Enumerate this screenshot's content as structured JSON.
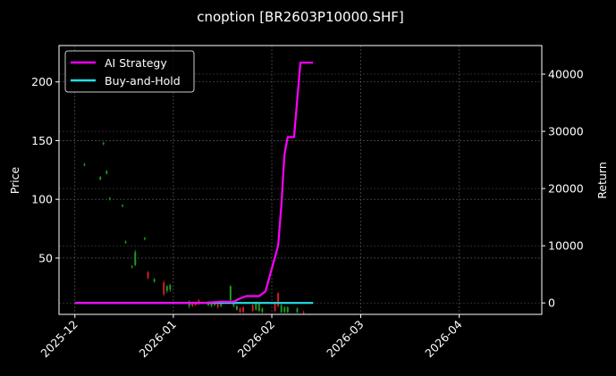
{
  "chart_data": {
    "type": "line",
    "title": "cnoption [BR2603P10000.SHF]",
    "xlabel": "",
    "ylabel": "Price",
    "y2label": "Return",
    "x_range": [
      "2025-11-26",
      "2026-04-27"
    ],
    "ylim": [
      2,
      231
    ],
    "y2lim": [
      -2000,
      45000
    ],
    "grid": true,
    "legend_position": "top-left",
    "x_ticks": [
      "2025-12",
      "2026-01",
      "2026-02",
      "2026-03",
      "2026-04"
    ],
    "y_ticks": [
      50,
      100,
      150,
      200
    ],
    "y2_ticks": [
      0,
      10000,
      20000,
      30000,
      40000
    ],
    "series": [
      {
        "name": "AI Strategy",
        "color": "#ff00ff",
        "axis": "right",
        "x": [
          "2025-12-01",
          "2026-01-10",
          "2026-01-16",
          "2026-01-20",
          "2026-01-22",
          "2026-01-24",
          "2026-01-28",
          "2026-01-30",
          "2026-02-01",
          "2026-02-03",
          "2026-02-04",
          "2026-02-05",
          "2026-02-06",
          "2026-02-07",
          "2026-02-08",
          "2026-02-10",
          "2026-02-11",
          "2026-02-12",
          "2026-02-14"
        ],
        "values": [
          0,
          0,
          200,
          200,
          800,
          1200,
          1200,
          2000,
          6000,
          10000,
          17000,
          26000,
          29000,
          29000,
          29000,
          42000,
          42000,
          42000,
          42000
        ]
      },
      {
        "name": "Buy-and-Hold",
        "color": "#22e0e6",
        "axis": "right",
        "x": [
          "2025-12-01",
          "2026-02-14"
        ],
        "values": [
          0,
          0
        ]
      }
    ],
    "candles": {
      "up_color": "#d42020",
      "down_color": "#1f9e1f",
      "data": [
        {
          "date": "2025-12-04",
          "open": 130,
          "close": 129,
          "high": 131,
          "low": 128
        },
        {
          "date": "2025-12-09",
          "open": 119,
          "close": 117,
          "high": 120,
          "low": 116
        },
        {
          "date": "2025-12-10",
          "open": 148,
          "close": 147,
          "high": 149,
          "low": 146
        },
        {
          "date": "2025-12-11",
          "open": 124,
          "close": 122,
          "high": 125,
          "low": 121
        },
        {
          "date": "2025-12-12",
          "open": 101,
          "close": 100,
          "high": 102,
          "low": 99
        },
        {
          "date": "2025-12-16",
          "open": 95,
          "close": 94,
          "high": 96,
          "low": 93
        },
        {
          "date": "2025-12-17",
          "open": 64,
          "close": 63,
          "high": 65,
          "low": 62
        },
        {
          "date": "2025-12-19",
          "open": 43,
          "close": 42,
          "high": 44,
          "low": 41
        },
        {
          "date": "2025-12-20",
          "open": 55,
          "close": 44,
          "high": 57,
          "low": 43
        },
        {
          "date": "2025-12-23",
          "open": 67,
          "close": 66,
          "high": 68,
          "low": 65
        },
        {
          "date": "2025-12-24",
          "open": 33,
          "close": 38,
          "high": 39,
          "low": 32
        },
        {
          "date": "2025-12-26",
          "open": 32,
          "close": 30,
          "high": 33,
          "low": 29
        },
        {
          "date": "2025-12-29",
          "open": 19,
          "close": 29,
          "high": 31,
          "low": 18
        },
        {
          "date": "2025-12-30",
          "open": 26,
          "close": 22,
          "high": 27,
          "low": 20
        },
        {
          "date": "2025-12-31",
          "open": 27,
          "close": 23,
          "high": 28,
          "low": 21
        },
        {
          "date": "2026-01-06",
          "open": 13,
          "close": 9,
          "high": 14,
          "low": 7
        },
        {
          "date": "2026-01-07",
          "open": 9,
          "close": 12,
          "high": 13,
          "low": 8
        },
        {
          "date": "2026-01-08",
          "open": 10,
          "close": 12,
          "high": 13,
          "low": 9
        },
        {
          "date": "2026-01-09",
          "open": 11,
          "close": 14,
          "high": 15,
          "low": 10
        },
        {
          "date": "2026-01-12",
          "open": 12,
          "close": 10,
          "high": 13,
          "low": 9
        },
        {
          "date": "2026-01-13",
          "open": 11,
          "close": 9,
          "high": 12,
          "low": 8
        },
        {
          "date": "2026-01-14",
          "open": 12,
          "close": 10,
          "high": 13,
          "low": 9
        },
        {
          "date": "2026-01-15",
          "open": 8,
          "close": 11,
          "high": 12,
          "low": 7
        },
        {
          "date": "2026-01-16",
          "open": 11,
          "close": 9,
          "high": 12,
          "low": 8
        },
        {
          "date": "2026-01-19",
          "open": 26,
          "close": 14,
          "high": 27,
          "low": 13
        },
        {
          "date": "2026-01-20",
          "open": 12,
          "close": 9,
          "high": 13,
          "low": 8
        },
        {
          "date": "2026-01-21",
          "open": 9,
          "close": 6,
          "high": 10,
          "low": 5
        },
        {
          "date": "2026-01-22",
          "open": 4,
          "close": 7,
          "high": 8,
          "low": 3
        },
        {
          "date": "2026-01-23",
          "open": 4,
          "close": 8,
          "high": 9,
          "low": 3
        },
        {
          "date": "2026-01-26",
          "open": 5,
          "close": 10,
          "high": 11,
          "low": 4
        },
        {
          "date": "2026-01-27",
          "open": 12,
          "close": 6,
          "high": 13,
          "low": 5
        },
        {
          "date": "2026-01-28",
          "open": 11,
          "close": 5,
          "high": 12,
          "low": 4
        },
        {
          "date": "2026-01-29",
          "open": 7,
          "close": 4,
          "high": 8,
          "low": 3
        },
        {
          "date": "2026-02-02",
          "open": 5,
          "close": 12,
          "high": 13,
          "low": 4
        },
        {
          "date": "2026-02-03",
          "open": 9,
          "close": 20,
          "high": 21,
          "low": 8
        },
        {
          "date": "2026-02-04",
          "open": 10,
          "close": 4,
          "high": 11,
          "low": 3
        },
        {
          "date": "2026-02-05",
          "open": 8,
          "close": 4,
          "high": 9,
          "low": 3
        },
        {
          "date": "2026-02-06",
          "open": 8,
          "close": 4,
          "high": 9,
          "low": 3
        },
        {
          "date": "2026-02-09",
          "open": 7,
          "close": 4,
          "high": 8,
          "low": 3
        },
        {
          "date": "2026-02-11",
          "open": 3,
          "close": 4,
          "high": 5,
          "low": 2
        }
      ]
    }
  }
}
